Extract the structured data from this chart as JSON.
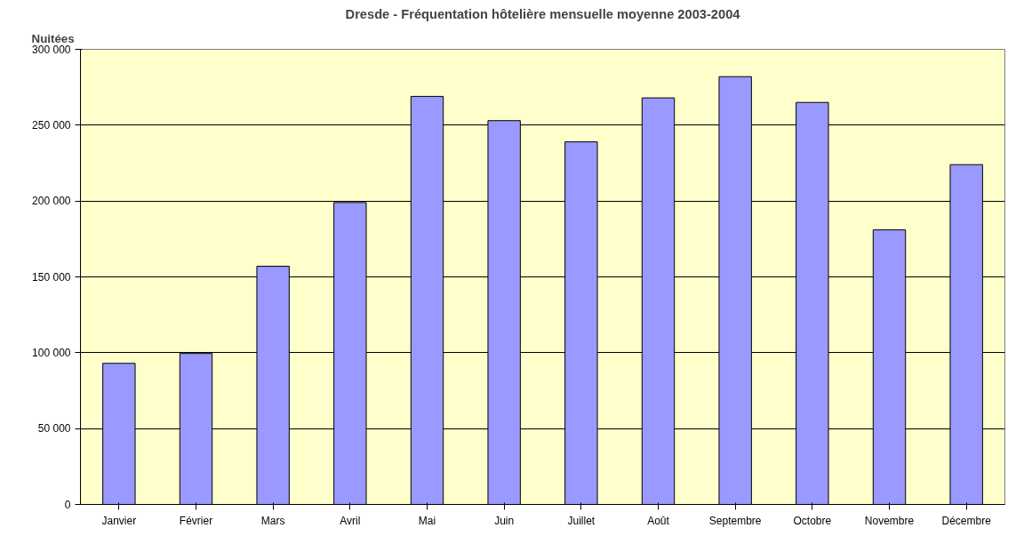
{
  "chart_data": {
    "type": "bar",
    "title": "Dresde - Fréquentation hôtelière mensuelle moyenne 2003-2004",
    "ylabel": "Nuitées",
    "categories": [
      "Janvier",
      "Février",
      "Mars",
      "Avril",
      "Mai",
      "Juin",
      "Juillet",
      "Août",
      "Septembre",
      "Octobre",
      "Novembre",
      "Décembre"
    ],
    "values": [
      93000,
      99500,
      157000,
      199000,
      269000,
      253000,
      239000,
      268000,
      282000,
      265000,
      181000,
      224000
    ],
    "color": "#9999ff",
    "ylim": [
      0,
      300000
    ],
    "yticks": [
      0,
      {
        "value": 50000,
        "label": "50 000"
      },
      {
        "value": 100000,
        "label": "100 000"
      },
      {
        "value": 150000,
        "label": "150 000"
      },
      {
        "value": 200000,
        "label": "200 000"
      },
      {
        "value": 250000,
        "label": "250 000"
      },
      {
        "value": 300000,
        "label": "300 000"
      }
    ],
    "grid": "y"
  }
}
